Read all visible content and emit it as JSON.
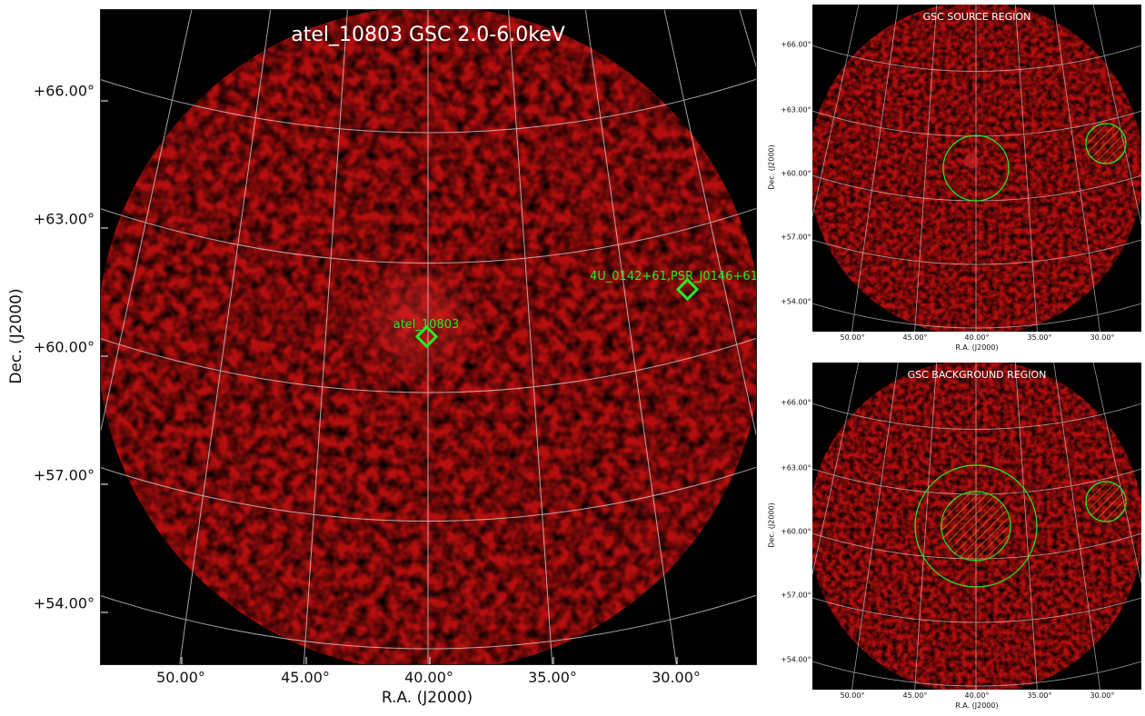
{
  "main_plot": {
    "title": "atel_10803 GSC 2.0-6.0keV",
    "xlabel": "R.A. (J2000)",
    "ylabel": "Dec. (J2000)",
    "x_ticks": [
      "50.00°",
      "45.00°",
      "40.00°",
      "35.00°",
      "30.00°"
    ],
    "y_ticks": [
      "+66.00°",
      "+63.00°",
      "+60.00°",
      "+57.00°",
      "+54.00°"
    ],
    "sources": [
      {
        "label": "atel_10803"
      },
      {
        "label": "4U_0142+61,PSR_J0146+61"
      }
    ]
  },
  "source_region": {
    "title": "GSC SOURCE REGION",
    "xlabel": "R.A. (J2000)",
    "ylabel": "Dec. (J2000)",
    "x_ticks": [
      "50.00°",
      "45.00°",
      "40.00°",
      "35.00°",
      "30.00°"
    ],
    "y_ticks": [
      "+66.00°",
      "+63.00°",
      "+60.00°",
      "+57.00°",
      "+54.00°"
    ]
  },
  "background_region": {
    "title": "GSC BACKGROUND REGION",
    "xlabel": "R.A. (J2000)",
    "ylabel": "Dec. (J2000)",
    "x_ticks": [
      "50.00°",
      "45.00°",
      "40.00°",
      "35.00°",
      "30.00°"
    ],
    "y_ticks": [
      "+66.00°",
      "+63.00°",
      "+60.00°",
      "+57.00°",
      "+54.00°"
    ]
  },
  "colors": {
    "sky_red": "#b50e0e",
    "sky_dark": "#4a0404",
    "region_green": "#22ee22",
    "grid": "#d8d8d8"
  }
}
